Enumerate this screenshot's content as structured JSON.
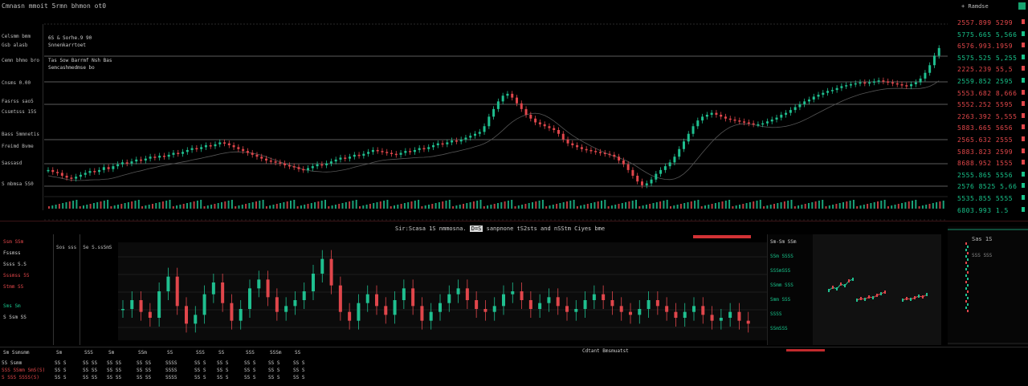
{
  "header": {
    "title": "Cmnasn mmoit 5rmn bhmon ot0",
    "right_label": "+ Ramdse"
  },
  "left_panel": {
    "items": [
      {
        "label": "Celsmm bmm",
        "tone": "w"
      },
      {
        "label": "Gsb alasb",
        "tone": "w"
      },
      {
        "label": "Cemn bhmo bro",
        "tone": "w"
      },
      {
        "label": "Cnsms 0.00",
        "tone": "w"
      },
      {
        "label": "Fasrss sao5",
        "tone": "w"
      },
      {
        "label": "Cssmtsss 15S",
        "tone": "w"
      },
      {
        "label": "Bass 5mmnetis",
        "tone": "w"
      },
      {
        "label": "Freimd Bvme",
        "tone": "w"
      },
      {
        "label": "Sassasd",
        "tone": "w"
      },
      {
        "label": "S mbmsa 5S0",
        "tone": "w"
      }
    ]
  },
  "main_chart": {
    "legend": [
      "6S & Sorhe.9 90",
      "Snnenkarrtoet",
      "Tas Sow Barrmf Nsh Bas",
      "Semcashmedmse bo"
    ],
    "colors": {
      "up": "#1fbf8f",
      "down": "#e0464b",
      "grid": "#7a7a7a"
    },
    "series": [
      112,
      110,
      109,
      106,
      104,
      103,
      105,
      107,
      109,
      111,
      110,
      112,
      115,
      113,
      116,
      118,
      120,
      119,
      121,
      123,
      122,
      124,
      126,
      125,
      127,
      126,
      128,
      130,
      129,
      131,
      133,
      135,
      134,
      136,
      138,
      137,
      139,
      141,
      140,
      138,
      136,
      134,
      132,
      130,
      128,
      126,
      124,
      122,
      121,
      120,
      119,
      117,
      116,
      115,
      113,
      112,
      114,
      116,
      118,
      117,
      119,
      121,
      123,
      125,
      124,
      126,
      128,
      127,
      129,
      131,
      133,
      132,
      131,
      130,
      129,
      128,
      130,
      132,
      131,
      133,
      135,
      134,
      136,
      138,
      140,
      139,
      141,
      143,
      142,
      144,
      146,
      148,
      150,
      152,
      158,
      168,
      176,
      184,
      190,
      192,
      188,
      182,
      176,
      170,
      166,
      162,
      160,
      158,
      156,
      154,
      150,
      144,
      140,
      138,
      136,
      134,
      133,
      132,
      131,
      130,
      129,
      128,
      126,
      122,
      118,
      112,
      106,
      100,
      96,
      98,
      102,
      108,
      112,
      116,
      120,
      126,
      134,
      142,
      150,
      158,
      164,
      168,
      170,
      172,
      170,
      168,
      166,
      165,
      164,
      163,
      162,
      161,
      160,
      160,
      161,
      163,
      165,
      167,
      170,
      172,
      175,
      178,
      181,
      184,
      186,
      189,
      191,
      193,
      195,
      196,
      198,
      200,
      201,
      202,
      203,
      204,
      203,
      204,
      205,
      206,
      205,
      204,
      203,
      202,
      201,
      200,
      202,
      204,
      208,
      214,
      222,
      232,
      240
    ],
    "ylim": [
      90,
      250
    ]
  },
  "price_ladder": [
    {
      "value": "2557.899 5299",
      "tone": "red"
    },
    {
      "value": "5775.665 5,566",
      "tone": "grn"
    },
    {
      "value": "6576.993.1959",
      "tone": "red"
    },
    {
      "value": "5575.525 5,255",
      "tone": "grn"
    },
    {
      "value": "2225.239 55,5",
      "tone": "red"
    },
    {
      "value": "2559.852 2595",
      "tone": "grn"
    },
    {
      "value": "5553.682 8,666",
      "tone": "red"
    },
    {
      "value": "5552.252 5595",
      "tone": "red"
    },
    {
      "value": "2263.392 5,555",
      "tone": "red"
    },
    {
      "value": "5883.665 5656",
      "tone": "red"
    },
    {
      "value": "2565.632 2555",
      "tone": "red"
    },
    {
      "value": "5883.823 2599",
      "tone": "red"
    },
    {
      "value": "8688.952 1555",
      "tone": "red"
    },
    {
      "value": "2555.865 5556",
      "tone": "grn"
    },
    {
      "value": "2576 8525 5,66",
      "tone": "grn"
    },
    {
      "value": "5535.855 5555",
      "tone": "grn"
    },
    {
      "value": "6803.993 1.5",
      "tone": "grn"
    }
  ],
  "lower": {
    "title": "Sir:Scasa 1S nmmosna.",
    "title_highlight": "D=S",
    "title_tail": "sanpnone tS2sts and nSStm Ciyes bme",
    "toolbar": [
      "Sos sss",
      "Se S.ssSmS",
      "5ss esa SSS Bss",
      "Sms Sss",
      "Sst Sss"
    ],
    "left_items": [
      {
        "label": "Ssm  SSm",
        "tone": "red"
      },
      {
        "label": "Fssmss",
        "tone": "w"
      },
      {
        "label": "Ssss  S.S",
        "tone": "w"
      },
      {
        "label": "Sssmss  5S",
        "tone": "red"
      },
      {
        "label": "Stmm  SS",
        "tone": "red"
      },
      {
        "label": "Sms Sm",
        "tone": "grn"
      },
      {
        "label": "S  Ssm  SS",
        "tone": "w"
      }
    ],
    "right_list": [
      "Sm-Sm SSm",
      "SSm SSSS",
      "SSSmSSS",
      "SSmm SSS",
      "Smm SSS",
      "SSSS",
      "SSmSSS"
    ],
    "series": [
      98,
      104,
      96,
      92,
      110,
      120,
      100,
      88,
      94,
      108,
      116,
      102,
      90,
      98,
      112,
      118,
      106,
      96,
      100,
      104,
      110,
      122,
      132,
      114,
      96,
      90,
      102,
      108,
      100,
      94,
      104,
      112,
      100,
      90,
      96,
      102,
      108,
      112,
      104,
      98,
      96,
      100,
      108,
      110,
      104,
      98,
      102,
      106,
      100,
      96,
      98,
      104,
      108,
      104,
      100,
      96,
      94,
      98,
      104,
      100,
      96,
      92,
      96,
      100,
      94,
      90,
      92,
      96,
      90,
      88
    ],
    "ylim": [
      80,
      140
    ],
    "mini_series": [
      [
        10,
        14,
        12,
        18,
        16,
        22,
        24
      ],
      [
        8,
        10,
        9,
        12,
        11,
        14,
        16,
        18
      ],
      [
        6,
        8,
        7,
        9,
        11,
        10,
        13
      ]
    ]
  },
  "side_mini": {
    "label": "Sas 1S",
    "sub": "SSS SSS"
  },
  "bottom": {
    "caption": "Cdtant Bmsmuatst",
    "headers": [
      "Sm Ssmsmm",
      "Sm",
      "SSS",
      "Sm",
      "SSm",
      "SS",
      "SSS",
      "SS",
      "SSS",
      "SSSm",
      "SS"
    ],
    "rows": [
      {
        "label": "5S Ssmm",
        "vals": [
          "SS S",
          "SS SS",
          "SS SS",
          "SS SS",
          "SSSS",
          "SS S",
          "SS S",
          "SS S",
          "SS S",
          "SS S"
        ],
        "tone": "w"
      },
      {
        "label": "SSS  SSmm  SmS(S)",
        "vals": [
          "SS S",
          "SS SS",
          "SS SS",
          "SS SS",
          "SSSS",
          "SS S",
          "SS S",
          "SS S",
          "SS S",
          "SS S"
        ],
        "tone": "red"
      },
      {
        "label": "S  SSS  SSSS(S)",
        "vals": [
          "SS S",
          "SS SS",
          "SS SS",
          "SS SS",
          "SSSS",
          "SS S",
          "SS S",
          "SS S",
          "SS S",
          "SS S"
        ],
        "tone": "red"
      }
    ]
  }
}
